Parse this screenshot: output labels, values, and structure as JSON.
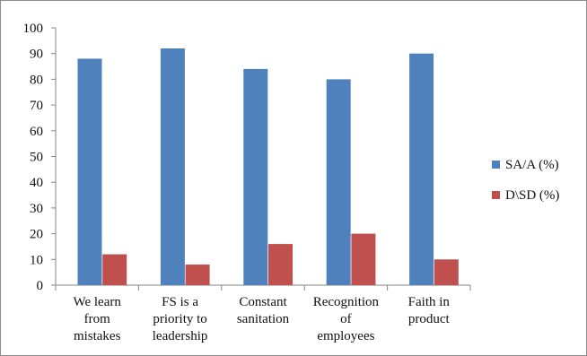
{
  "chart_data": {
    "type": "bar",
    "title": "",
    "xlabel": "",
    "ylabel": "",
    "ylim": [
      0,
      100
    ],
    "yticks": [
      0,
      10,
      20,
      30,
      40,
      50,
      60,
      70,
      80,
      90,
      100
    ],
    "grid": false,
    "legend_position": "right",
    "categories": [
      [
        "We learn",
        "from",
        "mistakes"
      ],
      [
        "FS is a",
        "priority to",
        "leadership"
      ],
      [
        "Constant",
        "sanitation"
      ],
      [
        "Recognition",
        "of",
        "employees"
      ],
      [
        "Faith in",
        "product"
      ]
    ],
    "series": [
      {
        "name": "SA/A (%)",
        "color": "#4f81bd",
        "values": [
          88,
          92,
          84,
          80,
          90
        ]
      },
      {
        "name": "D\\SD (%)",
        "color": "#c0504d",
        "values": [
          12,
          8,
          16,
          20,
          10
        ]
      }
    ]
  }
}
